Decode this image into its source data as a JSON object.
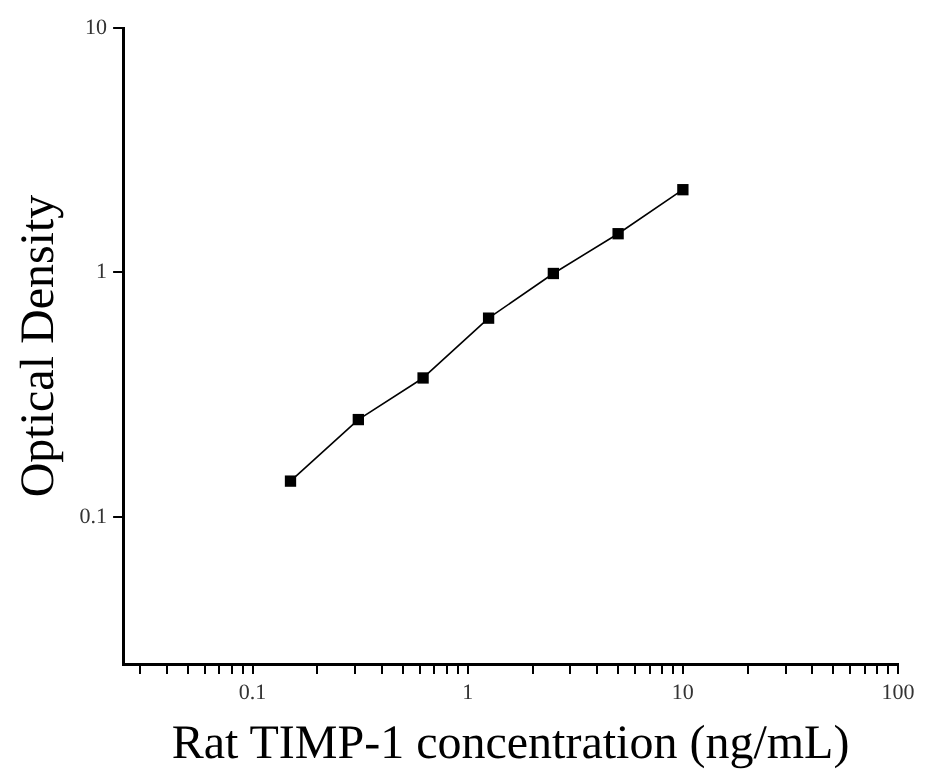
{
  "chart_data": {
    "type": "line",
    "xlabel": "Rat TIMP-1 concentration (ng/mL)",
    "ylabel": "Optical Density",
    "log": "xy",
    "grid": false,
    "legend": false,
    "marker": "square",
    "line_style": "solid",
    "xlim": [
      0.025,
      100
    ],
    "ylim": [
      0.025,
      10
    ],
    "xticks": [
      {
        "value": 0.03,
        "label": null
      },
      {
        "value": 0.04,
        "label": null
      },
      {
        "value": 0.05,
        "label": null
      },
      {
        "value": 0.06,
        "label": null
      },
      {
        "value": 0.07,
        "label": null
      },
      {
        "value": 0.08,
        "label": null
      },
      {
        "value": 0.09,
        "label": null
      },
      0.1,
      {
        "value": 0.2,
        "label": null
      },
      {
        "value": 0.3,
        "label": null
      },
      {
        "value": 0.4,
        "label": null
      },
      {
        "value": 0.5,
        "label": null
      },
      {
        "value": 0.6,
        "label": null
      },
      {
        "value": 0.7,
        "label": null
      },
      {
        "value": 0.8,
        "label": null
      },
      {
        "value": 0.9,
        "label": null
      },
      1,
      {
        "value": 2,
        "label": null
      },
      {
        "value": 3,
        "label": null
      },
      {
        "value": 4,
        "label": null
      },
      {
        "value": 5,
        "label": null
      },
      {
        "value": 6,
        "label": null
      },
      {
        "value": 7,
        "label": null
      },
      {
        "value": 8,
        "label": null
      },
      {
        "value": 9,
        "label": null
      },
      10,
      {
        "value": 20,
        "label": null
      },
      {
        "value": 30,
        "label": null
      },
      {
        "value": 40,
        "label": null
      },
      {
        "value": 50,
        "label": null
      },
      {
        "value": 60,
        "label": null
      },
      {
        "value": 70,
        "label": null
      },
      {
        "value": 80,
        "label": null
      },
      {
        "value": 90,
        "label": null
      },
      100
    ],
    "yticks": [
      0.1,
      1,
      10
    ],
    "series": [
      {
        "color": "#000000",
        "x": [
          0.15,
          0.31,
          0.62,
          1.25,
          2.5,
          5,
          10
        ],
        "values": [
          0.14,
          0.25,
          0.37,
          0.65,
          0.99,
          1.44,
          2.18
        ]
      }
    ]
  }
}
